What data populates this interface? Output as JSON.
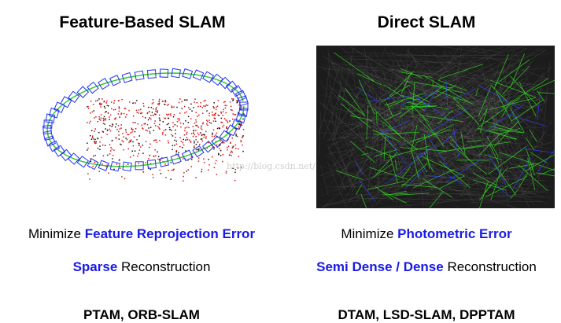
{
  "left": {
    "title": "Feature-Based SLAM",
    "objective_prefix": "Minimize ",
    "objective_highlight": "Feature Reprojection Error",
    "reconstruction_highlight": "Sparse",
    "reconstruction_suffix": " Reconstruction",
    "methods": "PTAM, ORB-SLAM"
  },
  "right": {
    "title": "Direct SLAM",
    "objective_prefix": "Minimize ",
    "objective_highlight": "Photometric Error",
    "reconstruction_highlight": "Semi Dense / Dense",
    "reconstruction_suffix": " Reconstruction",
    "methods": "DTAM, LSD-SLAM, DPPTAM"
  },
  "watermark": "http://blog.csdn.net/",
  "colors": {
    "highlight": "#1a1ae6",
    "keyframes": "#2233ee",
    "trajectory": "#33cc33",
    "points": "#dd1111"
  }
}
